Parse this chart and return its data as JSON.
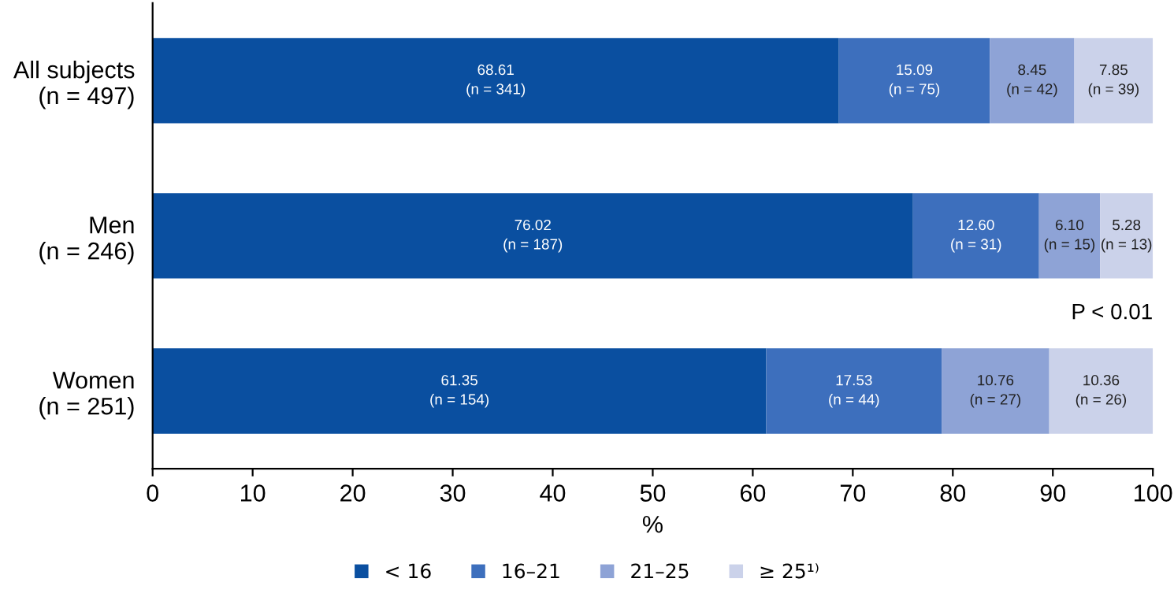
{
  "chart_data": {
    "type": "bar",
    "orientation": "horizontal",
    "stacked": true,
    "categories": [
      "All subjects\n(n = 497)",
      "Men\n(n = 246)",
      "Women\n(n = 251)"
    ],
    "series": [
      {
        "name": "< 16",
        "color": "#0a4fa0",
        "values": [
          68.61,
          76.02,
          61.35
        ],
        "value_labels": [
          "68.61\n(n = 341)",
          "76.02\n(n = 187)",
          "61.35\n(n = 154)"
        ]
      },
      {
        "name": "16–21",
        "color": "#3d6fbd",
        "values": [
          15.09,
          12.6,
          17.53
        ],
        "value_labels": [
          "15.09\n(n = 75)",
          "12.60\n(n = 31)",
          "17.53\n(n = 44)"
        ]
      },
      {
        "name": "21–25",
        "color": "#8ea3d6",
        "values": [
          8.45,
          6.1,
          10.76
        ],
        "value_labels": [
          "8.45\n(n = 42)",
          "6.10\n(n = 15)",
          "10.76\n(n = 27)"
        ]
      },
      {
        "name": "≥ 25¹⁾",
        "color": "#cbd2ea",
        "values": [
          7.85,
          5.28,
          10.36
        ],
        "value_labels": [
          "7.85\n(n = 39)",
          "5.28\n(n = 13)",
          "10.36\n(n = 26)"
        ]
      }
    ],
    "xlim": [
      0,
      100
    ],
    "xticks": [
      0,
      10,
      20,
      30,
      40,
      50,
      60,
      70,
      80,
      90,
      100
    ],
    "xlabel": "%",
    "legend": "bottom",
    "grid": false,
    "annotations": [
      "P < 0.01"
    ]
  }
}
